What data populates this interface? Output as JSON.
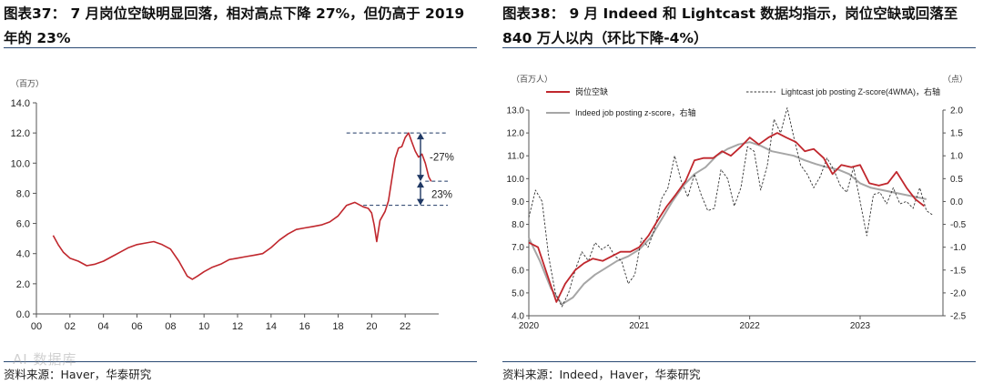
{
  "left": {
    "title": "图表37：  7 月岗位空缺明显回落，相对高点下降 27%，但仍高于 2019 年的 23%",
    "source": "资料来源：Haver，华泰研究",
    "watermark": "AI 数据库"
  },
  "right": {
    "title": "图表38：  9 月 Indeed 和 Lightcast 数据均指示，岗位空缺或回落至 840 万人以内（环比下降-4%）",
    "source": "资料来源：Indeed，Haver，华泰研究"
  },
  "colors": {
    "red": "#c0272d",
    "gray": "#a6a6a6",
    "dark": "#333333",
    "navy": "#1f3864",
    "rule": "#2b4a74"
  },
  "chart_data": [
    {
      "type": "line",
      "unit_label": "（百万）",
      "xlim": [
        2000,
        2024
      ],
      "ylim": [
        0,
        14
      ],
      "yticks": [
        "0.0",
        "2.0",
        "4.0",
        "6.0",
        "8.0",
        "10.0",
        "12.0",
        "14.0"
      ],
      "xticks": [
        {
          "year": 2000,
          "label": "00"
        },
        {
          "year": 2002,
          "label": "02"
        },
        {
          "year": 2004,
          "label": "04"
        },
        {
          "year": 2006,
          "label": "06"
        },
        {
          "year": 2008,
          "label": "08"
        },
        {
          "year": 2010,
          "label": "10"
        },
        {
          "year": 2012,
          "label": "12"
        },
        {
          "year": 2014,
          "label": "14"
        },
        {
          "year": 2016,
          "label": "16"
        },
        {
          "year": 2018,
          "label": "18"
        },
        {
          "year": 2020,
          "label": "20"
        },
        {
          "year": 2022,
          "label": "22"
        }
      ],
      "series": [
        {
          "name": "岗位空缺",
          "x": [
            2001.0,
            2001.3,
            2001.6,
            2002.0,
            2002.5,
            2003.0,
            2003.5,
            2004.0,
            2004.5,
            2005.0,
            2005.5,
            2006.0,
            2006.5,
            2007.0,
            2007.5,
            2008.0,
            2008.5,
            2009.0,
            2009.3,
            2009.6,
            2010.0,
            2010.5,
            2011.0,
            2011.5,
            2012.0,
            2012.5,
            2013.0,
            2013.5,
            2014.0,
            2014.5,
            2015.0,
            2015.5,
            2016.0,
            2016.5,
            2017.0,
            2017.5,
            2018.0,
            2018.5,
            2019.0,
            2019.5,
            2019.8,
            2020.0,
            2020.15,
            2020.3,
            2020.5,
            2020.8,
            2021.0,
            2021.2,
            2021.4,
            2021.6,
            2021.8,
            2022.0,
            2022.2,
            2022.4,
            2022.6,
            2022.8,
            2023.0,
            2023.2,
            2023.4,
            2023.55
          ],
          "y": [
            5.2,
            4.6,
            4.1,
            3.7,
            3.5,
            3.2,
            3.3,
            3.5,
            3.8,
            4.1,
            4.4,
            4.6,
            4.7,
            4.8,
            4.6,
            4.3,
            3.5,
            2.5,
            2.3,
            2.5,
            2.8,
            3.1,
            3.3,
            3.6,
            3.7,
            3.8,
            3.9,
            4.0,
            4.4,
            4.9,
            5.3,
            5.6,
            5.7,
            5.8,
            5.9,
            6.1,
            6.5,
            7.2,
            7.4,
            7.1,
            7.0,
            6.7,
            5.9,
            4.8,
            6.2,
            6.8,
            7.5,
            8.9,
            10.3,
            11.0,
            11.1,
            11.7,
            12.0,
            11.4,
            10.8,
            10.4,
            10.6,
            10.0,
            9.1,
            8.8
          ]
        }
      ],
      "annotations": [
        {
          "text": "-27%",
          "from": 12.0,
          "to": 8.8
        },
        {
          "text": "23%",
          "from": 8.8,
          "to": 7.2
        }
      ]
    },
    {
      "type": "line",
      "left_unit": "（百万人）",
      "right_unit": "（点）",
      "xlim": [
        2020.0,
        2023.75
      ],
      "ylim_left": [
        4.0,
        13.0
      ],
      "ylim_right": [
        -2.5,
        2.0
      ],
      "yticks_left": [
        "4.0",
        "5.0",
        "6.0",
        "7.0",
        "8.0",
        "9.0",
        "10.0",
        "11.0",
        "12.0",
        "13.0"
      ],
      "yticks_right": [
        "-2.5",
        "-2.0",
        "-1.5",
        "-1.0",
        "-0.5",
        "0.0",
        "0.5",
        "1.0",
        "1.5",
        "2.0"
      ],
      "xticks": [
        {
          "year": 2020,
          "label": "2020"
        },
        {
          "year": 2021,
          "label": "2021"
        },
        {
          "year": 2022,
          "label": "2022"
        },
        {
          "year": 2023,
          "label": "2023"
        }
      ],
      "legend": [
        "岗位空缺",
        "Lightcast job posting Z-score(4WMA)，右轴",
        "Indeed job posting z-score，右轴"
      ],
      "series": [
        {
          "name": "岗位空缺",
          "axis": "left",
          "x": [
            2020.0,
            2020.083,
            2020.25,
            2020.33,
            2020.42,
            2020.5,
            2020.58,
            2020.67,
            2020.75,
            2020.83,
            2020.92,
            2021.0,
            2021.083,
            2021.17,
            2021.25,
            2021.33,
            2021.42,
            2021.5,
            2021.58,
            2021.67,
            2021.75,
            2021.83,
            2021.92,
            2022.0,
            2022.083,
            2022.17,
            2022.25,
            2022.33,
            2022.42,
            2022.5,
            2022.58,
            2022.67,
            2022.75,
            2022.83,
            2022.92,
            2023.0,
            2023.083,
            2023.17,
            2023.25,
            2023.33,
            2023.42,
            2023.5,
            2023.58
          ],
          "y": [
            7.2,
            7.0,
            4.6,
            5.4,
            6.0,
            6.3,
            6.5,
            6.4,
            6.6,
            6.8,
            6.8,
            7.0,
            7.5,
            8.2,
            8.8,
            9.3,
            9.9,
            10.8,
            10.9,
            10.9,
            11.2,
            11.0,
            11.4,
            11.8,
            11.5,
            11.8,
            12.0,
            11.8,
            11.6,
            11.2,
            11.3,
            10.9,
            10.2,
            10.6,
            10.5,
            10.6,
            9.8,
            9.7,
            9.8,
            10.3,
            9.6,
            9.1,
            8.8
          ]
        },
        {
          "name": "Indeed job posting z-score，右轴",
          "axis": "right",
          "x": [
            2020.0,
            2020.1,
            2020.2,
            2020.3,
            2020.4,
            2020.5,
            2020.6,
            2020.7,
            2020.8,
            2020.9,
            2021.0,
            2021.1,
            2021.2,
            2021.3,
            2021.4,
            2021.5,
            2021.6,
            2021.7,
            2021.8,
            2021.9,
            2022.0,
            2022.1,
            2022.2,
            2022.3,
            2022.4,
            2022.5,
            2022.6,
            2022.7,
            2022.8,
            2022.9,
            2023.0,
            2023.1,
            2023.2,
            2023.3,
            2023.4,
            2023.5,
            2023.6
          ],
          "y": [
            -0.8,
            -1.3,
            -1.9,
            -2.25,
            -2.1,
            -1.8,
            -1.6,
            -1.45,
            -1.3,
            -1.2,
            -1.05,
            -0.8,
            -0.4,
            0.0,
            0.35,
            0.6,
            0.75,
            1.0,
            1.15,
            1.25,
            1.3,
            1.22,
            1.1,
            1.05,
            1.0,
            0.9,
            0.82,
            0.75,
            0.7,
            0.6,
            0.4,
            0.3,
            0.25,
            0.2,
            0.15,
            0.1,
            0.05
          ]
        },
        {
          "name": "Lightcast job posting Z-score(4WMA)，右轴",
          "axis": "right",
          "x": [
            2020.0,
            2020.06,
            2020.12,
            2020.18,
            2020.24,
            2020.3,
            2020.36,
            2020.42,
            2020.48,
            2020.54,
            2020.6,
            2020.66,
            2020.72,
            2020.78,
            2020.84,
            2020.9,
            2020.96,
            2021.02,
            2021.08,
            2021.14,
            2021.2,
            2021.26,
            2021.32,
            2021.38,
            2021.44,
            2021.5,
            2021.56,
            2021.62,
            2021.68,
            2021.74,
            2021.8,
            2021.86,
            2021.92,
            2021.98,
            2022.04,
            2022.1,
            2022.16,
            2022.22,
            2022.28,
            2022.34,
            2022.4,
            2022.46,
            2022.52,
            2022.58,
            2022.64,
            2022.7,
            2022.76,
            2022.82,
            2022.88,
            2022.94,
            2023.0,
            2023.06,
            2023.12,
            2023.18,
            2023.24,
            2023.3,
            2023.36,
            2023.42,
            2023.48,
            2023.54,
            2023.6,
            2023.66
          ],
          "y": [
            -0.35,
            0.25,
            0.0,
            -1.2,
            -2.0,
            -2.3,
            -2.0,
            -1.5,
            -1.1,
            -1.3,
            -0.9,
            -1.05,
            -0.95,
            -1.2,
            -1.3,
            -1.8,
            -1.6,
            -0.8,
            -1.0,
            -0.6,
            0.05,
            0.3,
            1.0,
            0.45,
            0.1,
            0.6,
            0.15,
            -0.2,
            -0.15,
            0.7,
            0.5,
            -0.1,
            0.3,
            1.2,
            1.1,
            0.25,
            0.8,
            1.8,
            1.5,
            2.05,
            1.4,
            0.8,
            0.6,
            0.3,
            0.55,
            0.95,
            0.7,
            0.35,
            0.2,
            0.75,
            0.0,
            -0.75,
            0.15,
            0.2,
            -0.05,
            0.3,
            -0.05,
            0.0,
            -0.15,
            0.3,
            -0.2,
            -0.3
          ]
        }
      ]
    }
  ]
}
